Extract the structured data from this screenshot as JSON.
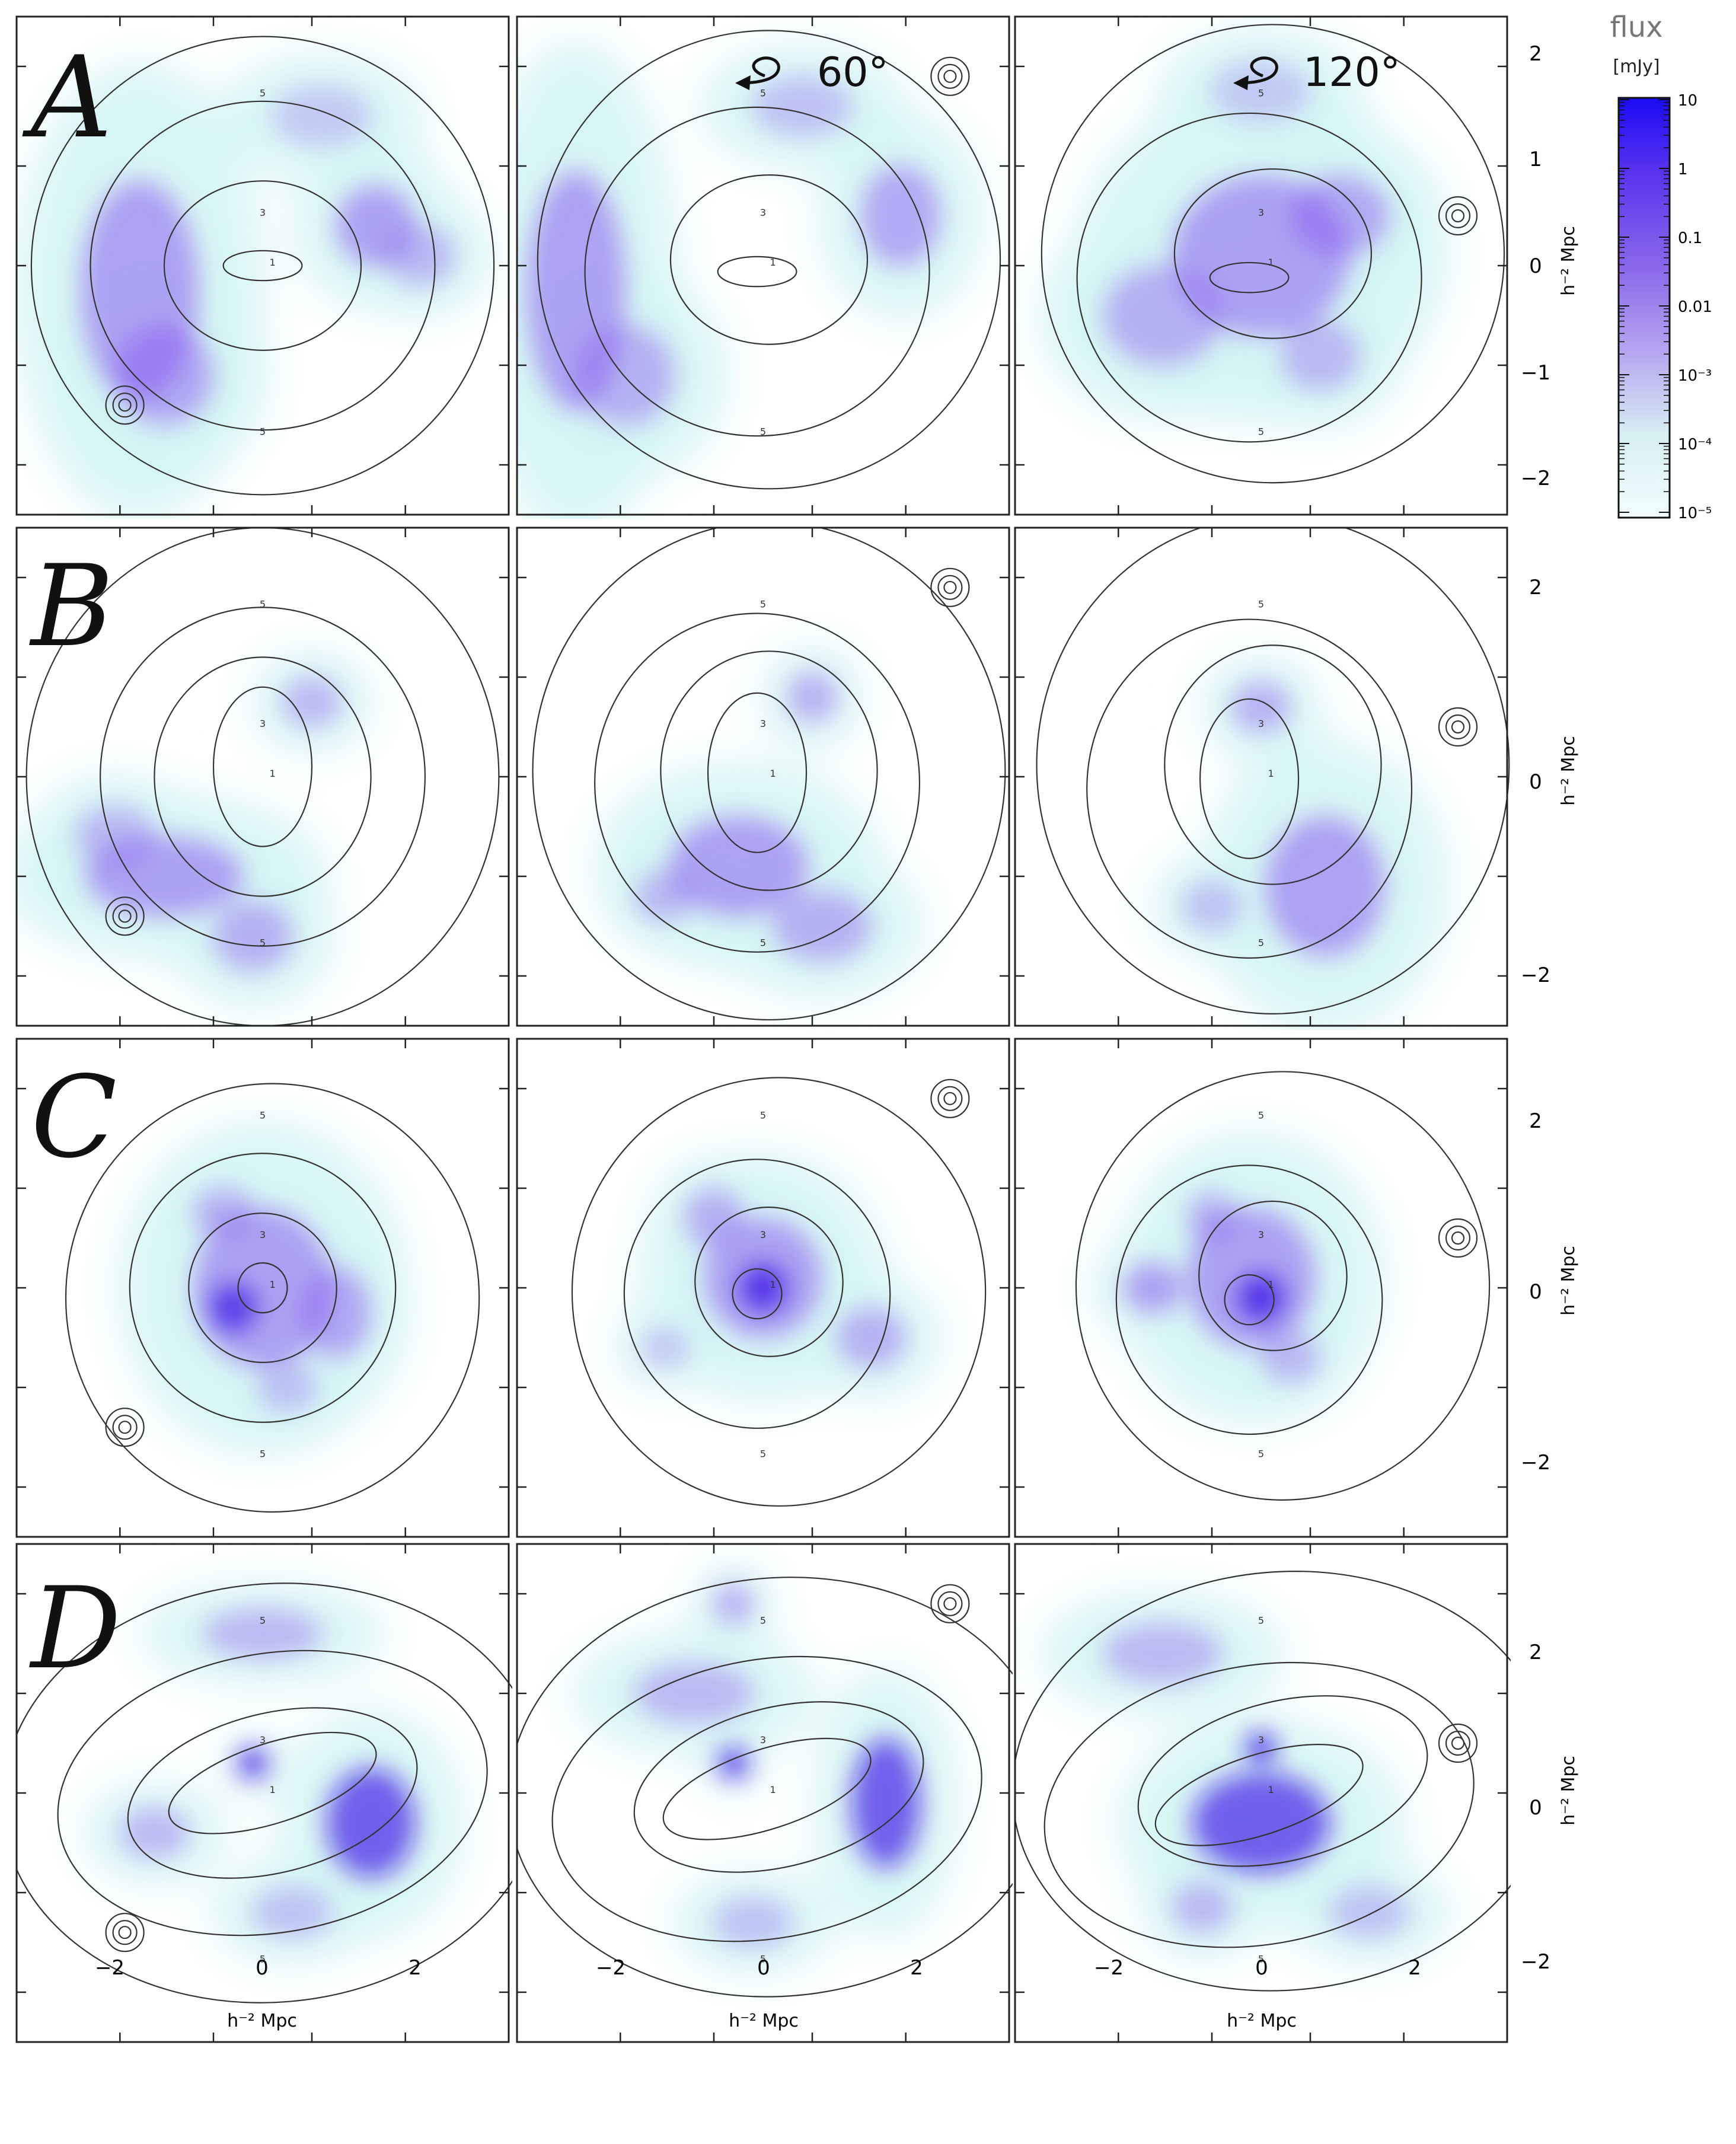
{
  "rows": [
    {
      "letter": "A",
      "panels": [
        "A-0",
        "A-60",
        "A-120"
      ]
    },
    {
      "letter": "B",
      "panels": [
        "B-0",
        "B-60",
        "B-120"
      ]
    },
    {
      "letter": "C",
      "panels": [
        "C-0",
        "C-60",
        "C-120"
      ]
    },
    {
      "letter": "D",
      "panels": [
        "D-0",
        "D-60",
        "D-120"
      ]
    }
  ],
  "rotation_labels": [
    "60°",
    "120°"
  ],
  "axis_label": "h⁻² Mpc",
  "x_tick_labels": [
    "−2",
    "0",
    "2"
  ],
  "y_tick_labels": [
    "2",
    "1",
    "0",
    "−1",
    "−2"
  ],
  "contour_labels": [
    "1",
    "3",
    "5"
  ],
  "colorbar": {
    "title": "flux",
    "unit": "[mJy]",
    "tick_labels": [
      "10",
      "1",
      "0.1",
      "0.01",
      "10⁻³",
      "10⁻⁴",
      "10⁻⁵"
    ],
    "color_high": "#2a10f0",
    "color_mid": "#8c6ee8",
    "color_low": "#e9fbfb"
  },
  "colors": {
    "frame": "#222222",
    "contour": "#333333",
    "emission": "#8a5cf0",
    "emission_core": "#3a16e6",
    "emission_halo": "#d4f4f4"
  }
}
